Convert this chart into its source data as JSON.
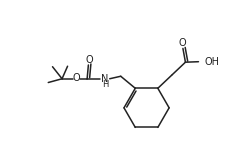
{
  "background": "#ffffff",
  "line_color": "#222222",
  "line_width": 1.1,
  "figsize": [
    2.53,
    1.63
  ],
  "dpi": 100,
  "xlim": [
    0,
    10
  ],
  "ylim": [
    0,
    6.5
  ]
}
